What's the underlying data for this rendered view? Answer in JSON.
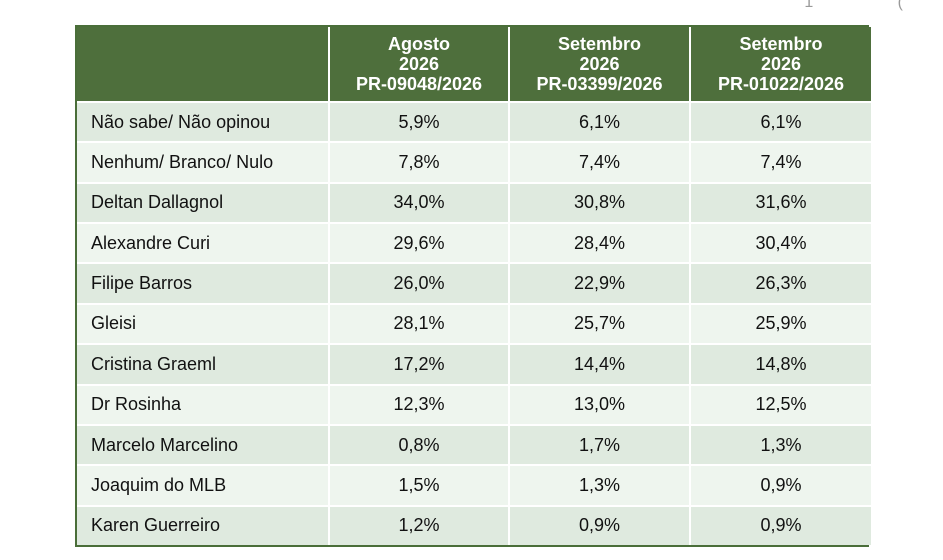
{
  "corner_fragment": "1 (",
  "table": {
    "columns": [
      {
        "label": "",
        "line1": "",
        "line2": "",
        "line3": ""
      },
      {
        "line1": "Agosto",
        "line2": "2026",
        "line3": "PR-09048/2026"
      },
      {
        "line1": "Setembro",
        "line2": "2026",
        "line3": "PR-03399/2026"
      },
      {
        "line1": "Setembro",
        "line2": "2026",
        "line3": "PR-01022/2026"
      }
    ],
    "rows": [
      {
        "name": "Não sabe/ Não opinou",
        "v1": "5,9%",
        "v2": "6,1%",
        "v3": "6,1%"
      },
      {
        "name": "Nenhum/ Branco/ Nulo",
        "v1": "7,8%",
        "v2": "7,4%",
        "v3": "7,4%"
      },
      {
        "name": "Deltan Dallagnol",
        "v1": "34,0%",
        "v2": "30,8%",
        "v3": "31,6%"
      },
      {
        "name": "Alexandre Curi",
        "v1": "29,6%",
        "v2": "28,4%",
        "v3": "30,4%"
      },
      {
        "name": "Filipe Barros",
        "v1": "26,0%",
        "v2": "22,9%",
        "v3": "26,3%"
      },
      {
        "name": "Gleisi",
        "v1": "28,1%",
        "v2": "25,7%",
        "v3": "25,9%"
      },
      {
        "name": "Cristina Graeml",
        "v1": "17,2%",
        "v2": "14,4%",
        "v3": "14,8%"
      },
      {
        "name": "Dr Rosinha",
        "v1": "12,3%",
        "v2": "13,0%",
        "v3": "12,5%"
      },
      {
        "name": "Marcelo Marcelino",
        "v1": "0,8%",
        "v2": "1,7%",
        "v3": "1,3%"
      },
      {
        "name": "Joaquim do MLB",
        "v1": "1,5%",
        "v2": "1,3%",
        "v3": "0,9%"
      },
      {
        "name": "Karen Guerreiro",
        "v1": "1,2%",
        "v2": "0,9%",
        "v3": "0,9%"
      }
    ]
  },
  "colors": {
    "header_bg": "#4e6f3c",
    "row_odd": "#dfeadf",
    "row_even": "#eef5ee",
    "border": "#4a6e39"
  }
}
